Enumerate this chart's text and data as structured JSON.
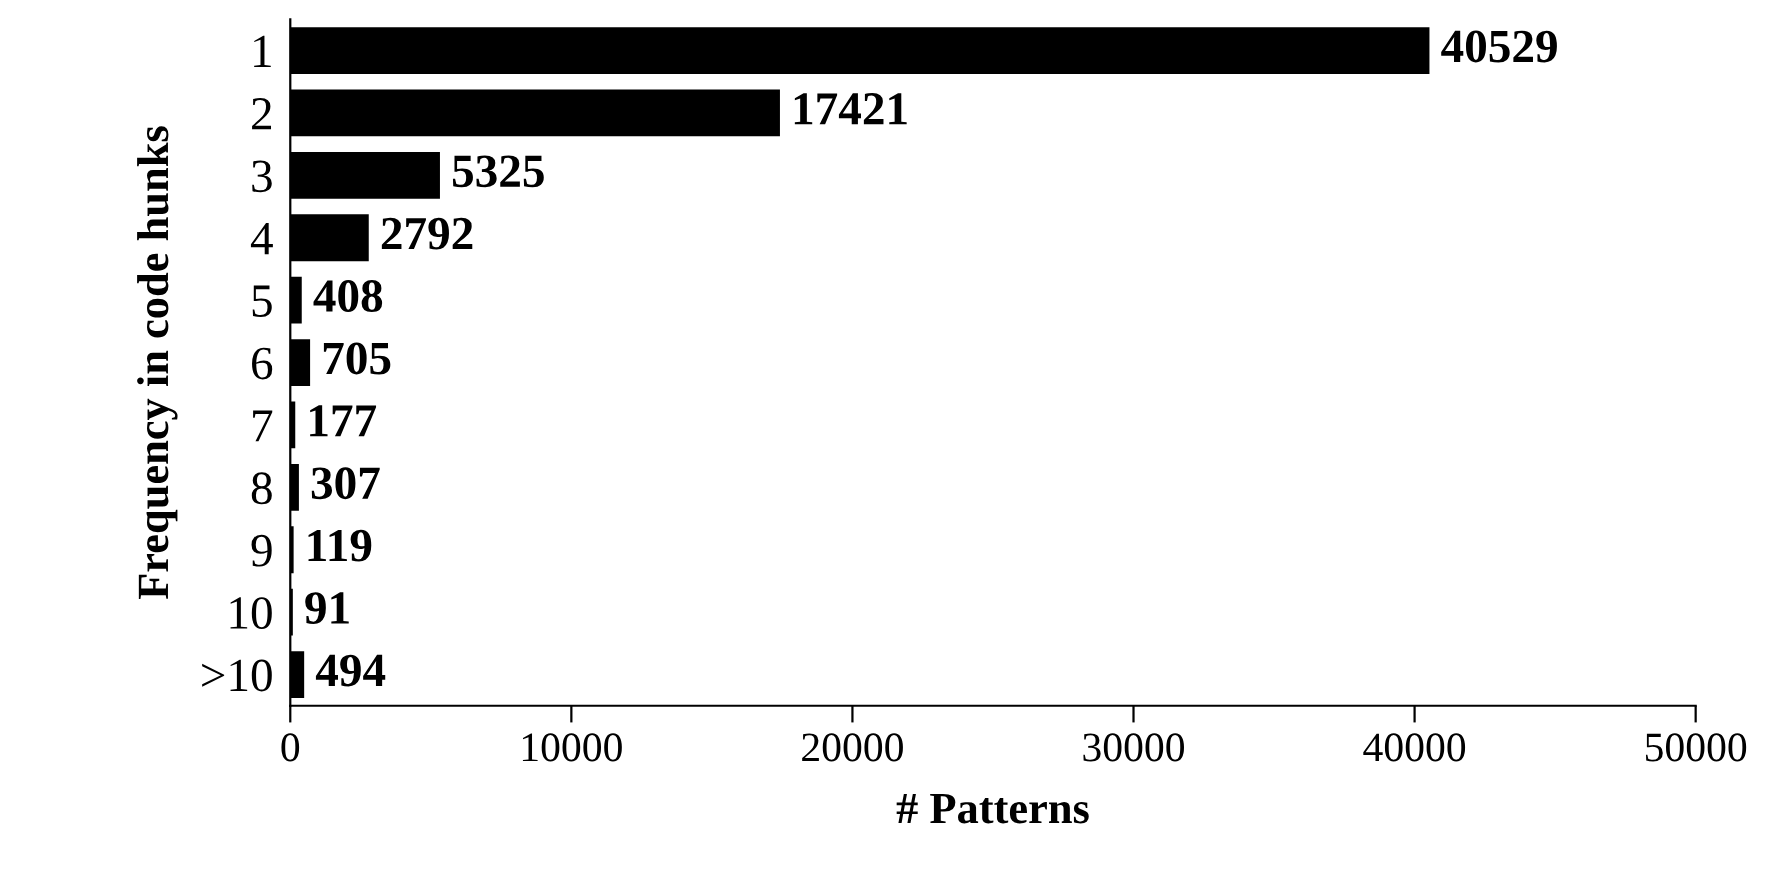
{
  "chart_data": {
    "type": "bar",
    "orientation": "horizontal",
    "categories": [
      "1",
      "2",
      "3",
      "4",
      "5",
      "6",
      "7",
      "8",
      "9",
      "10",
      ">10"
    ],
    "values": [
      40529,
      17421,
      5325,
      2792,
      408,
      705,
      177,
      307,
      119,
      91,
      494
    ],
    "color": "#000000",
    "xlim": [
      0,
      50000
    ],
    "xticks": [
      0,
      10000,
      20000,
      30000,
      40000,
      50000
    ],
    "xlabel": "# Patterns",
    "ylabel": "Frequency in code hunks",
    "data_labels": true,
    "grid": false,
    "legend": false
  }
}
